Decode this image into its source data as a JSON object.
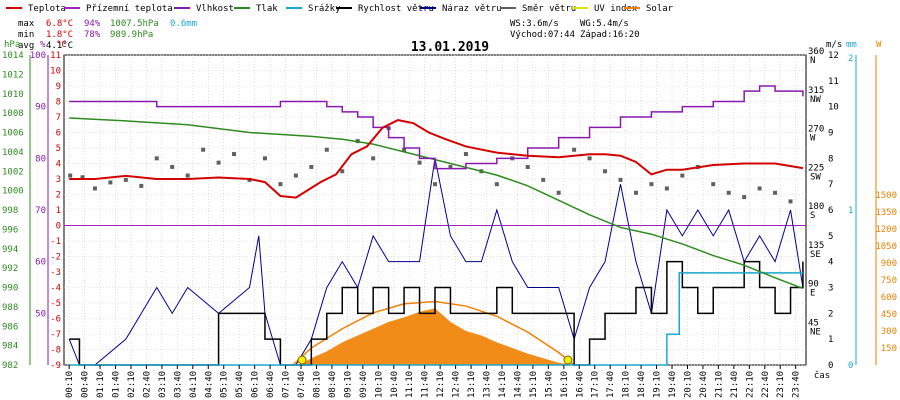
{
  "chart_data": {
    "type": "line",
    "title": "13.01.2019",
    "legend": [
      {
        "name": "Teplota",
        "color": "#d40000"
      },
      {
        "name": "Přízemní teplota",
        "color": "#a020c0"
      },
      {
        "name": "Vlhkost",
        "color": "#8a18b0"
      },
      {
        "name": "Tlak",
        "color": "#2e8b20"
      },
      {
        "name": "Srážky",
        "color": "#18a8d0"
      },
      {
        "name": "Rychlost větru",
        "color": "#000000"
      },
      {
        "name": "Náraz větru",
        "color": "#000090"
      },
      {
        "name": "Směr větru",
        "color": "#606060"
      },
      {
        "name": "UV index",
        "color": "#e8e000"
      },
      {
        "name": "Solar",
        "color": "#f08000"
      }
    ],
    "stats": {
      "max": {
        "label": "max",
        "temp": "6.8°C",
        "hum": "94%",
        "press": "1007.5hPa",
        "rain": "0.6mm"
      },
      "min": {
        "label": "min",
        "temp": "1.8°C",
        "hum": "78%",
        "press": "989.9hPa"
      },
      "avg": {
        "label": "avg",
        "temp": "4.1°C"
      }
    },
    "wind_info": {
      "ws": "WS:3.6m/s",
      "wg": "WG:5.4m/s",
      "sunrise": "Východ:07:44",
      "sunset": "Západ:16:20"
    },
    "x_label": "čas",
    "x_ticks": [
      "00:10",
      "00:40",
      "01:10",
      "01:40",
      "02:10",
      "02:40",
      "03:10",
      "03:40",
      "04:10",
      "04:40",
      "05:10",
      "05:40",
      "06:10",
      "06:40",
      "07:10",
      "07:40",
      "08:10",
      "08:40",
      "09:10",
      "09:40",
      "10:10",
      "10:40",
      "11:10",
      "11:40",
      "12:10",
      "12:40",
      "13:10",
      "13:40",
      "14:10",
      "14:40",
      "15:10",
      "15:40",
      "16:10",
      "16:40",
      "17:10",
      "17:40",
      "18:10",
      "18:40",
      "19:10",
      "19:40",
      "20:10",
      "20:40",
      "21:10",
      "21:40",
      "22:10",
      "22:40",
      "23:10",
      "23:40"
    ],
    "axes": {
      "pressure": {
        "unit": "hPa",
        "ticks": [
          "1014",
          "1012",
          "1010",
          "1008",
          "1006",
          "1004",
          "1002",
          "1000",
          "998",
          "996",
          "994",
          "992",
          "990",
          "988",
          "986",
          "984",
          "982"
        ],
        "range": [
          982,
          1014
        ]
      },
      "humidity": {
        "unit": "%",
        "ticks": [
          "100",
          "90",
          "80",
          "70",
          "60",
          "50"
        ],
        "range": [
          40,
          100
        ]
      },
      "temperature": {
        "unit": "°C",
        "ticks": [
          "11",
          "10",
          "9",
          "8",
          "7",
          "6",
          "5",
          "4",
          "3",
          "2",
          "1",
          "0",
          "-1",
          "-2",
          "-3",
          "-4",
          "-5",
          "-6",
          "-7",
          "-8",
          "-9"
        ],
        "range": [
          -9,
          11
        ]
      },
      "wind_dir": {
        "ticks": [
          "360",
          "315",
          "270",
          "225",
          "180",
          "135",
          "90",
          "45"
        ],
        "dir_labels": [
          "N",
          "NW",
          "W",
          "SW",
          "S",
          "SE",
          "E",
          "NE"
        ]
      },
      "wind_speed": {
        "unit": "m/s",
        "ticks": [
          "12",
          "11",
          "10",
          "9",
          "8",
          "7",
          "6",
          "5",
          "4",
          "3",
          "2",
          "1",
          "0"
        ],
        "range": [
          0,
          12
        ]
      },
      "rain": {
        "unit": "mm",
        "ticks": [
          "2",
          "1",
          "0"
        ],
        "range": [
          0,
          2
        ]
      },
      "solar": {
        "unit": "W",
        "ticks": [
          "1500",
          "1350",
          "1200",
          "1050",
          "900",
          "750",
          "600",
          "450",
          "300",
          "150"
        ],
        "range": [
          0,
          1500
        ]
      }
    },
    "series": {
      "temperature": {
        "name": "Teplota",
        "color": "#d40000",
        "x": [
          0.17,
          1,
          2,
          3,
          4,
          5,
          6,
          6.5,
          7,
          7.5,
          7.9,
          8.3,
          8.8,
          9.3,
          9.8,
          10.3,
          10.8,
          11.3,
          11.8,
          12.3,
          13,
          13.5,
          14,
          15,
          16,
          17,
          17.5,
          18,
          18.5,
          19,
          19.5,
          20,
          21,
          22,
          23,
          23.9
        ],
        "y": [
          3.0,
          3.0,
          3.2,
          3.0,
          3.0,
          3.1,
          3.0,
          2.8,
          1.9,
          1.8,
          2.3,
          2.8,
          3.3,
          4.6,
          5.1,
          6.3,
          6.8,
          6.6,
          6.0,
          5.6,
          5.1,
          4.9,
          4.7,
          4.5,
          4.4,
          4.6,
          4.6,
          4.5,
          4.1,
          3.3,
          3.6,
          3.6,
          3.9,
          4.0,
          4.0,
          3.7
        ]
      },
      "humidity": {
        "name": "Vlhkost",
        "color": "#8a18b0",
        "x": [
          0.17,
          1,
          2,
          3,
          4,
          5,
          6,
          6.5,
          7,
          7.5,
          8,
          8.5,
          9,
          9.5,
          10,
          10.5,
          11,
          11.5,
          12,
          12.5,
          13,
          14,
          15,
          16,
          17,
          18,
          19,
          20,
          21,
          22,
          22.5,
          23,
          23.9
        ],
        "y": [
          91,
          91,
          91,
          90,
          90,
          90,
          90,
          90,
          91,
          91,
          91,
          90,
          89,
          88,
          86,
          84,
          82,
          80,
          78,
          78,
          79,
          80,
          82,
          84,
          86,
          88,
          89,
          90,
          91,
          93,
          94,
          93,
          92
        ]
      },
      "pressure": {
        "name": "Tlak",
        "color": "#2e8b20",
        "x": [
          0.17,
          2,
          4,
          6,
          8,
          9,
          10,
          11,
          12,
          13,
          14,
          15,
          16,
          17,
          18,
          19,
          20,
          21,
          22,
          23,
          23.9
        ],
        "y": [
          1007.5,
          1007.2,
          1006.8,
          1006.0,
          1005.6,
          1005.3,
          1004.8,
          1004.0,
          1003.2,
          1002.4,
          1001.6,
          1000.5,
          999.0,
          997.5,
          996.2,
          995.5,
          994.5,
          993.3,
          992.3,
          991.0,
          989.9
        ]
      },
      "wind_speed": {
        "name": "Rychlost větru",
        "color": "#000000",
        "x": [
          0.17,
          0.5,
          1,
          2,
          3,
          4,
          5,
          6,
          6.5,
          7,
          7.5,
          8,
          8.5,
          9,
          9.5,
          10,
          10.5,
          11,
          11.5,
          12,
          12.5,
          13,
          13.5,
          14,
          14.5,
          15,
          15.5,
          16,
          16.5,
          17,
          17.5,
          18,
          18.5,
          19,
          19.5,
          20,
          20.5,
          21,
          21.5,
          22,
          22.5,
          23,
          23.5,
          23.9
        ],
        "y": [
          1,
          0,
          0,
          0,
          0,
          0,
          2,
          2,
          1,
          0,
          0,
          1,
          2,
          3,
          2,
          3,
          2,
          3,
          2,
          3,
          2,
          2,
          2,
          3,
          2,
          2,
          2,
          2,
          0,
          1,
          2,
          2,
          3,
          2,
          4,
          3,
          2,
          3,
          3,
          4,
          3,
          2,
          3,
          4
        ]
      },
      "wind_gust": {
        "name": "Náraz větru",
        "color": "#000090",
        "x": [
          0.17,
          0.5,
          1,
          2,
          2.5,
          3,
          3.5,
          4,
          5,
          6,
          6.3,
          6.5,
          7,
          7.5,
          8,
          8.5,
          9,
          9.5,
          10,
          10.5,
          11,
          11.5,
          12,
          12.5,
          13,
          13.5,
          14,
          14.5,
          15,
          15.5,
          16,
          16.5,
          17,
          17.5,
          18,
          18.5,
          19,
          19.5,
          20,
          20.5,
          21,
          21.5,
          22,
          22.5,
          23,
          23.5,
          23.9
        ],
        "y": [
          1,
          0,
          0,
          1,
          2,
          3,
          2,
          3,
          2,
          3,
          5,
          2,
          0,
          0,
          1,
          3,
          4,
          3,
          5,
          4,
          4,
          4,
          8,
          5,
          4,
          4,
          6,
          4,
          3,
          3,
          3,
          1,
          3,
          4,
          7,
          4,
          2,
          6,
          5,
          6,
          5,
          6,
          4,
          5,
          4,
          6,
          3
        ]
      },
      "wind_dir": {
        "name": "Směr větru",
        "color": "#606060",
        "x": [
          0.2,
          0.6,
          1,
          1.5,
          2,
          2.5,
          3,
          3.5,
          4,
          4.5,
          5,
          5.5,
          6,
          6.5,
          7,
          7.5,
          8,
          8.5,
          9,
          9.5,
          10,
          10.5,
          11,
          11.5,
          12,
          12.5,
          13,
          13.5,
          14,
          14.5,
          15,
          15.5,
          16,
          16.5,
          17,
          17.5,
          18,
          18.5,
          19,
          19.5,
          20,
          20.5,
          21,
          21.5,
          22,
          22.5,
          23,
          23.5
        ],
        "y": [
          220,
          218,
          205,
          212,
          215,
          208,
          240,
          230,
          220,
          250,
          235,
          245,
          215,
          240,
          210,
          220,
          230,
          250,
          225,
          260,
          240,
          275,
          250,
          235,
          210,
          230,
          245,
          225,
          210,
          240,
          230,
          215,
          200,
          250,
          240,
          225,
          215,
          200,
          210,
          205,
          220,
          230,
          210,
          200,
          195,
          205,
          200,
          190
        ]
      },
      "rain": {
        "name": "Srážky",
        "color": "#18a8d0",
        "x": [
          0.17,
          19,
          19.1,
          19.5,
          19.9,
          20,
          23.9
        ],
        "y": [
          0,
          0,
          0,
          0.2,
          0.6,
          0.6,
          0.6
        ]
      },
      "solar": {
        "name": "Solar",
        "color": "#f08000",
        "x": [
          7.6,
          8,
          8.5,
          9,
          9.5,
          10,
          10.5,
          11,
          11.5,
          12,
          12.5,
          13,
          13.5,
          14,
          14.5,
          15,
          15.5,
          16,
          16.5
        ],
        "y": [
          0,
          60,
          120,
          200,
          260,
          320,
          380,
          420,
          470,
          500,
          380,
          300,
          260,
          200,
          150,
          100,
          60,
          20,
          0
        ]
      },
      "solar_max": {
        "name": "Solar max",
        "color": "#f08000",
        "x": [
          7.4,
          8,
          9,
          10,
          11,
          12,
          13,
          14,
          15,
          16,
          16.5
        ],
        "y": [
          0,
          150,
          320,
          460,
          540,
          560,
          520,
          430,
          290,
          110,
          0
        ]
      },
      "uv": {
        "name": "UV index",
        "color": "#e8e000",
        "x": [
          7.7,
          16.3
        ],
        "y": [
          0,
          0
        ]
      }
    }
  }
}
